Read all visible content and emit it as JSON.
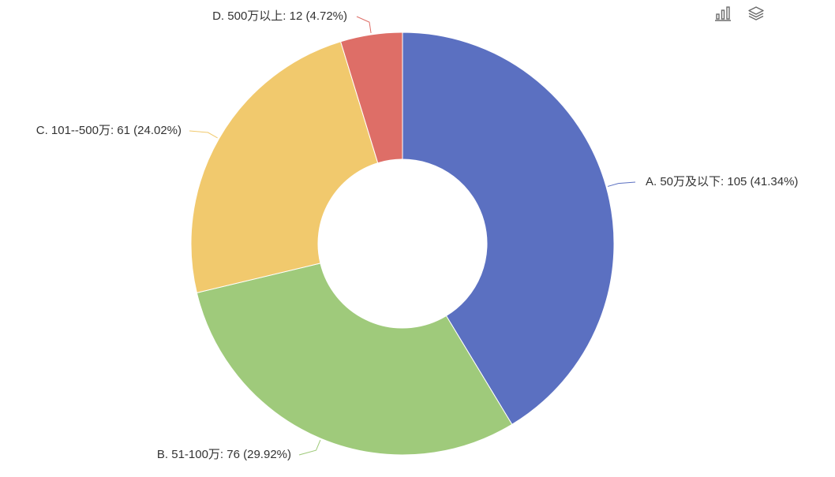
{
  "toolbox": {
    "icons": [
      "bar-chart-icon",
      "layers-icon"
    ]
  },
  "chart_data": {
    "type": "pie",
    "donut": true,
    "slices": [
      {
        "name": "A. 50万及以下",
        "value": 105,
        "percent": "41.34%",
        "label": "A. 50万及以下: 105 (41.34%)",
        "color": "#5b70c1"
      },
      {
        "name": "B. 51-100万",
        "value": 76,
        "percent": "29.92%",
        "label": "B. 51-100万: 76 (29.92%)",
        "color": "#9fca7b"
      },
      {
        "name": "C. 101--500万",
        "value": 61,
        "percent": "24.02%",
        "label": "C. 101--500万: 61 (24.02%)",
        "color": "#f1c96d"
      },
      {
        "name": "D. 500万以上",
        "value": 12,
        "percent": "4.72%",
        "label": "D. 500万以上: 12 (4.72%)",
        "color": "#de6e67"
      }
    ],
    "start_angle": "top",
    "direction": "clockwise"
  }
}
